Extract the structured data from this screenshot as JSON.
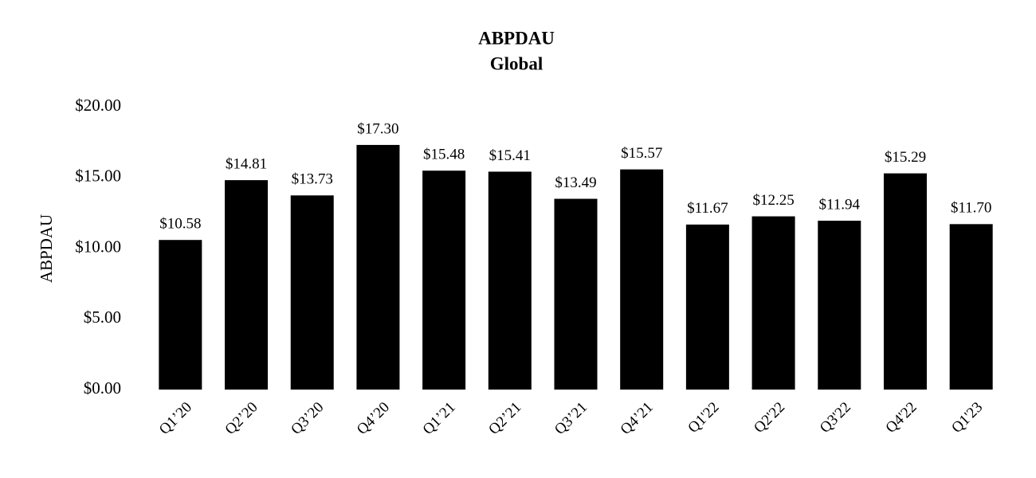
{
  "chart_data": {
    "type": "bar",
    "title": "ABPDAU",
    "subtitle": "Global",
    "y_label": "ABPDAU",
    "categories": [
      "Q1’20",
      "Q2’20",
      "Q3’20",
      "Q4’20",
      "Q1’21",
      "Q2’21",
      "Q3’21",
      "Q4’21",
      "Q1'22",
      "Q2'22",
      "Q3'22",
      "Q4'22",
      "Q1'23"
    ],
    "values": [
      10.58,
      14.81,
      13.73,
      17.3,
      15.48,
      15.41,
      13.49,
      15.57,
      11.67,
      12.25,
      11.94,
      15.29,
      11.7
    ],
    "value_labels": [
      "$10.58",
      "$14.81",
      "$13.73",
      "$17.30",
      "$15.48",
      "$15.41",
      "$13.49",
      "$15.57",
      "$11.67",
      "$12.25",
      "$11.94",
      "$15.29",
      "$11.70"
    ],
    "color": "#000000",
    "ylim": [
      0,
      20
    ],
    "yticks": [
      {
        "value": 0,
        "label": "$0.00"
      },
      {
        "value": 5,
        "label": "$5.00"
      },
      {
        "value": 10,
        "label": "$10.00"
      },
      {
        "value": 15,
        "label": "$15.00"
      },
      {
        "value": 20,
        "label": "$20.00"
      }
    ],
    "grid": false
  }
}
